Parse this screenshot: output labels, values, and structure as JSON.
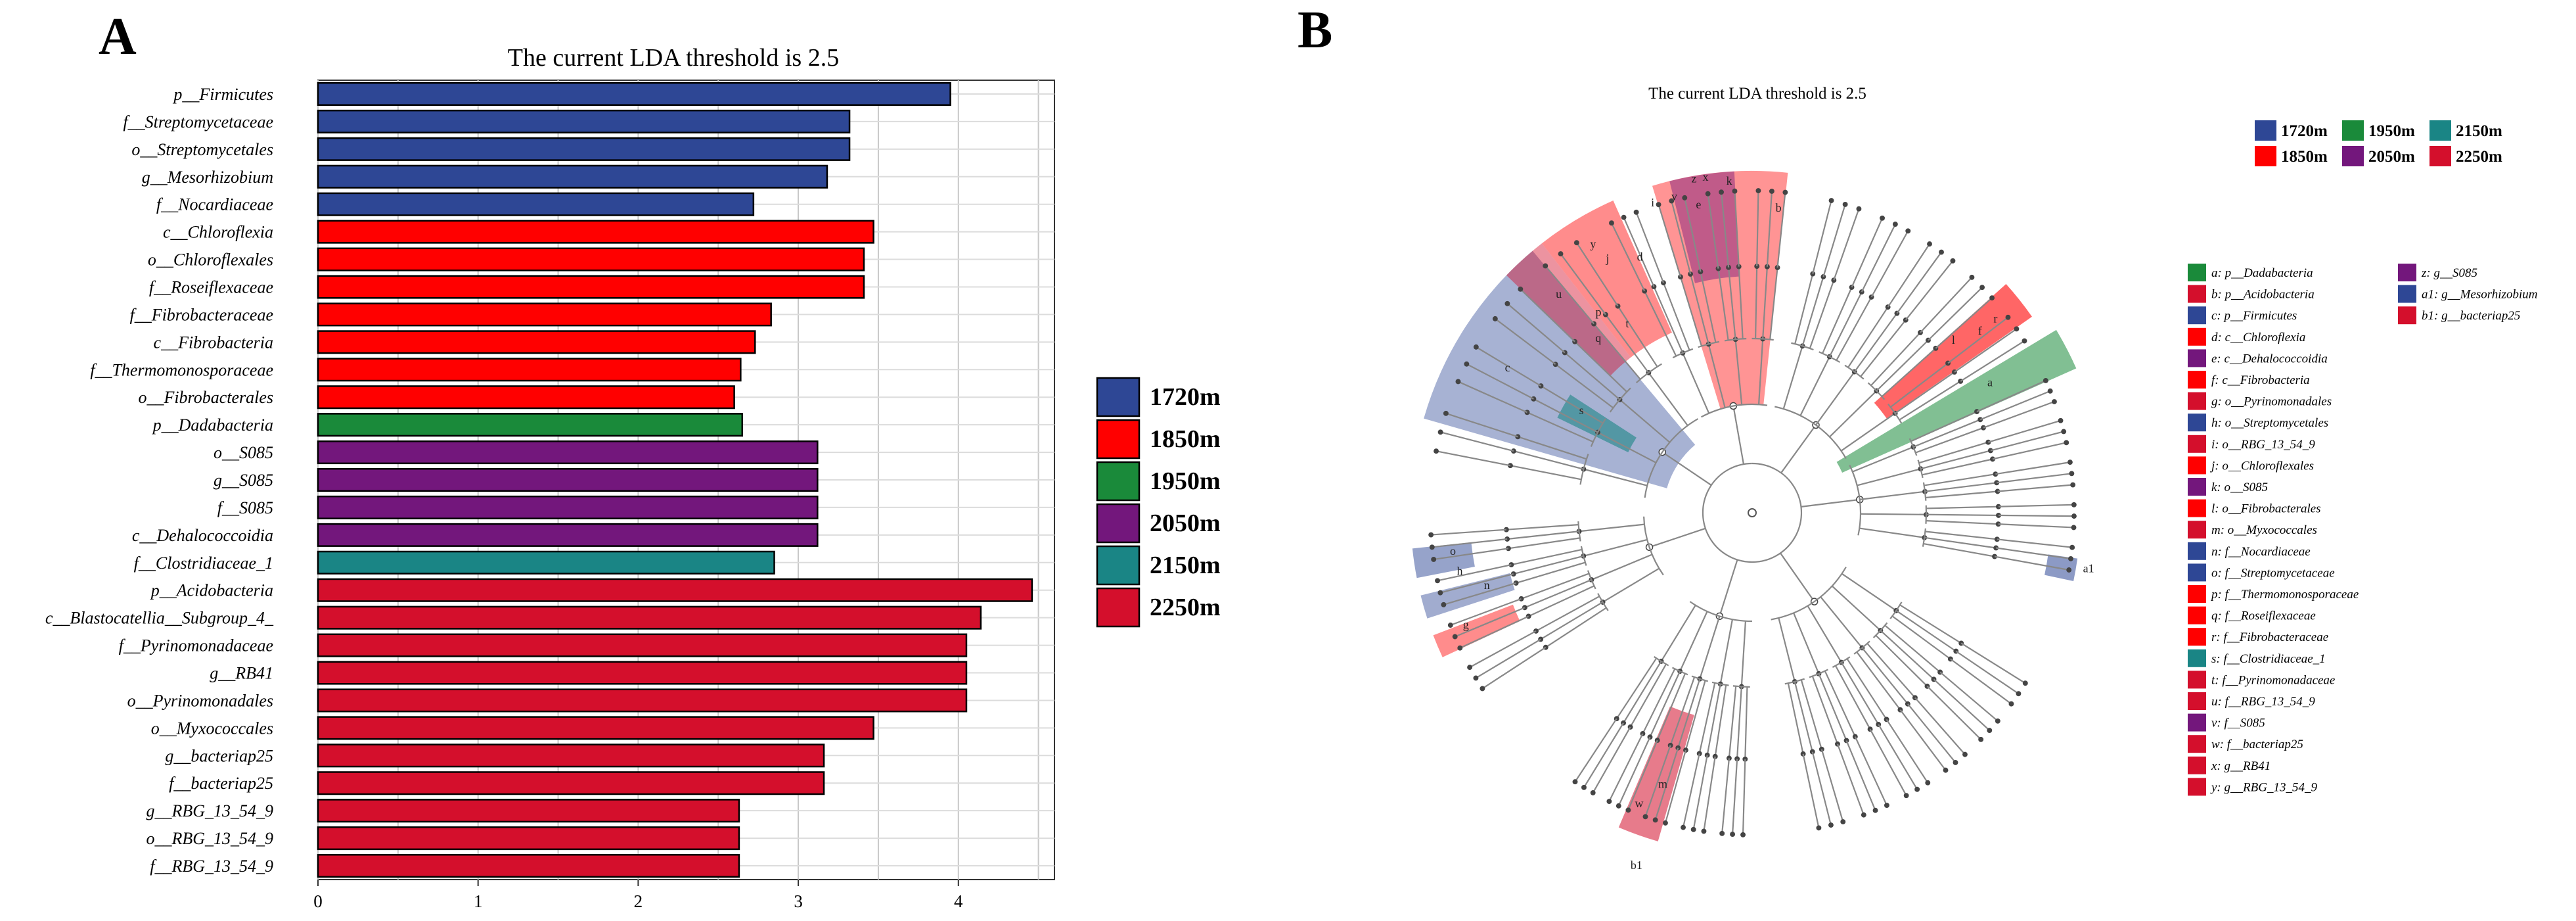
{
  "panel_a_letter": "A",
  "panel_b_letter": "B",
  "chart_data": [
    {
      "type": "bar",
      "orientation": "horizontal",
      "title": "The current LDA threshold is 2.5",
      "xlim": [
        0,
        4.6
      ],
      "xticks": [
        0,
        1,
        2,
        3,
        4
      ],
      "grid": true,
      "legend_position": "right",
      "legend": [
        {
          "name": "1720m",
          "color": "#2e4795"
        },
        {
          "name": "1850m",
          "color": "#ff0000"
        },
        {
          "name": "1950m",
          "color": "#1a8a3a"
        },
        {
          "name": "2050m",
          "color": "#73177c"
        },
        {
          "name": "2150m",
          "color": "#1a8585"
        },
        {
          "name": "2250m",
          "color": "#d40f2c"
        }
      ],
      "categories": [
        "p__Firmicutes",
        "f__Streptomycetaceae",
        "o__Streptomycetales",
        "g__Mesorhizobium",
        "f__Nocardiaceae",
        "c__Chloroflexia",
        "o__Chloroflexales",
        "f__Roseiflexaceae",
        "f__Fibrobacteraceae",
        "c__Fibrobacteria",
        "f__Thermomonosporaceae",
        "o__Fibrobacterales",
        "p__Dadabacteria",
        "o__S085",
        "g__S085",
        "f__S085",
        "c__Dehalococcoidia",
        "f__Clostridiaceae_1",
        "p__Acidobacteria",
        "c__Blastocatellia__Subgroup_4_",
        "f__Pyrinomonadaceae",
        "g__RB41",
        "o__Pyrinomonadales",
        "o__Myxococcales",
        "g__bacteriap25",
        "f__bacteriap25",
        "g__RBG_13_54_9",
        "o__RBG_13_54_9",
        "f__RBG_13_54_9"
      ],
      "values": [
        3.95,
        3.32,
        3.32,
        3.18,
        2.72,
        3.47,
        3.41,
        3.41,
        2.83,
        2.73,
        2.64,
        2.6,
        2.65,
        3.12,
        3.12,
        3.12,
        3.12,
        2.85,
        4.46,
        4.14,
        4.05,
        4.05,
        4.05,
        3.47,
        3.16,
        3.16,
        2.63,
        2.63,
        2.63
      ],
      "groups": [
        "1720m",
        "1720m",
        "1720m",
        "1720m",
        "1720m",
        "1850m",
        "1850m",
        "1850m",
        "1850m",
        "1850m",
        "1850m",
        "1850m",
        "1950m",
        "2050m",
        "2050m",
        "2050m",
        "2050m",
        "2150m",
        "2250m",
        "2250m",
        "2250m",
        "2250m",
        "2250m",
        "2250m",
        "2250m",
        "2250m",
        "2250m",
        "2250m",
        "2250m"
      ]
    },
    {
      "type": "cladogram",
      "title": "The current LDA threshold is 2.5",
      "legend": [
        {
          "name": "1720m",
          "color": "#2e4795"
        },
        {
          "name": "1950m",
          "color": "#1a8a3a"
        },
        {
          "name": "2150m",
          "color": "#1a8585"
        },
        {
          "name": "1850m",
          "color": "#ff0000"
        },
        {
          "name": "2050m",
          "color": "#73177c"
        },
        {
          "name": "2250m",
          "color": "#d40f2c"
        }
      ],
      "key_col1": [
        {
          "text": "a: p__Dadabacteria",
          "color": "#1a8a3a"
        },
        {
          "text": "b: p__Acidobacteria",
          "color": "#d40f2c"
        },
        {
          "text": "c: p__Firmicutes",
          "color": "#2e4795"
        },
        {
          "text": "d: c__Chloroflexia",
          "color": "#ff0000"
        },
        {
          "text": "e: c__Dehalococcoidia",
          "color": "#73177c"
        },
        {
          "text": "f: c__Fibrobacteria",
          "color": "#ff0000"
        },
        {
          "text": "g: o__Pyrinomonadales",
          "color": "#d40f2c"
        },
        {
          "text": "h: o__Streptomycetales",
          "color": "#2e4795"
        },
        {
          "text": "i: o__RBG_13_54_9",
          "color": "#d40f2c"
        },
        {
          "text": "j: o__Chloroflexales",
          "color": "#ff0000"
        },
        {
          "text": "k: o__S085",
          "color": "#73177c"
        },
        {
          "text": "l: o__Fibrobacterales",
          "color": "#ff0000"
        },
        {
          "text": "m: o__Myxococcales",
          "color": "#d40f2c"
        },
        {
          "text": "n: f__Nocardiaceae",
          "color": "#2e4795"
        },
        {
          "text": "o: f__Streptomycetaceae",
          "color": "#2e4795"
        },
        {
          "text": "p: f__Thermomonosporaceae",
          "color": "#ff0000"
        },
        {
          "text": "q: f__Roseiflexaceae",
          "color": "#ff0000"
        },
        {
          "text": "r: f__Fibrobacteraceae",
          "color": "#ff0000"
        },
        {
          "text": "s: f__Clostridiaceae_1",
          "color": "#1a8585"
        },
        {
          "text": "t: f__Pyrinomonadaceae",
          "color": "#d40f2c"
        },
        {
          "text": "u: f__RBG_13_54_9",
          "color": "#d40f2c"
        },
        {
          "text": "v: f__S085",
          "color": "#73177c"
        },
        {
          "text": "w: f__bacteriap25",
          "color": "#d40f2c"
        },
        {
          "text": "x: g__RB41",
          "color": "#d40f2c"
        },
        {
          "text": "y: g__RBG_13_54_9",
          "color": "#d40f2c"
        }
      ],
      "key_col2": [
        {
          "text": "z: g__S085",
          "color": "#73177c"
        },
        {
          "text": "a1: g__Mesorhizobium",
          "color": "#2e4795"
        },
        {
          "text": "b1: g__bacteriap25",
          "color": "#d40f2c"
        }
      ],
      "clade_labels": [
        "a",
        "b",
        "c",
        "d",
        "e",
        "f",
        "g",
        "h",
        "i",
        "j",
        "k",
        "l",
        "m",
        "n",
        "o",
        "p",
        "q",
        "r",
        "s",
        "t",
        "u",
        "v",
        "w",
        "x",
        "y",
        "z",
        "a1",
        "b1"
      ]
    }
  ]
}
